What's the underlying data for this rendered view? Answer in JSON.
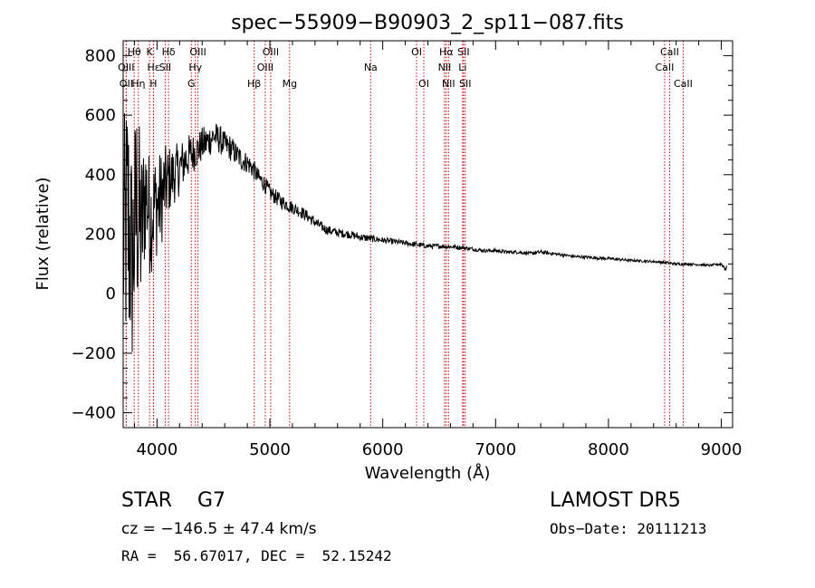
{
  "chart_data": {
    "type": "line",
    "title": "spec−55909−B90903_2_sp11−087.fits",
    "xlabel": "Wavelength (Å)",
    "ylabel": "Flux (relative)",
    "xlim": [
      3700,
      9100
    ],
    "ylim": [
      -450,
      850
    ],
    "xticks": [
      4000,
      5000,
      6000,
      7000,
      8000,
      9000
    ],
    "yticks": [
      -400,
      -200,
      0,
      200,
      400,
      600,
      800
    ],
    "ytick_labels": [
      "−400",
      "−200",
      "0",
      "200",
      "400",
      "600",
      "800"
    ],
    "line_color": "#000000",
    "marker_color": "#cc0000",
    "series": [
      {
        "x": [
          3700,
          3740,
          3780,
          3820,
          3860,
          3900,
          3940,
          3980,
          4020,
          4060,
          4100,
          4150,
          4200,
          4250,
          4300,
          4350,
          4400,
          4450,
          4500,
          4550,
          4600,
          4650,
          4700,
          4750,
          4800,
          4850,
          4900,
          4950,
          5000,
          5100,
          5200,
          5300,
          5400,
          5500,
          5600,
          5700,
          5800,
          5900,
          6000,
          6100,
          6200,
          6300,
          6400,
          6500,
          6600,
          6700,
          6800,
          6900,
          7000,
          7100,
          7200,
          7300,
          7400,
          7500,
          7600,
          7700,
          7800,
          7900,
          8000,
          8100,
          8200,
          8300,
          8400,
          8500,
          8600,
          8700,
          8800,
          8900,
          9000,
          9050
        ],
        "y": [
          150,
          250,
          100,
          300,
          200,
          350,
          250,
          300,
          300,
          350,
          380,
          400,
          420,
          450,
          470,
          480,
          500,
          510,
          530,
          520,
          500,
          490,
          470,
          450,
          440,
          420,
          390,
          370,
          340,
          310,
          290,
          270,
          240,
          215,
          205,
          200,
          190,
          185,
          180,
          175,
          170,
          165,
          160,
          160,
          158,
          155,
          150,
          145,
          145,
          140,
          140,
          135,
          140,
          135,
          130,
          125,
          123,
          120,
          118,
          115,
          112,
          110,
          108,
          105,
          100,
          100,
          98,
          95,
          100,
          80
        ],
        "noise": [
          400,
          500,
          380,
          400,
          300,
          220,
          200,
          180,
          180,
          150,
          120,
          100,
          90,
          80,
          70,
          60,
          60,
          60,
          50,
          50,
          45,
          45,
          40,
          40,
          35,
          35,
          30,
          30,
          28,
          25,
          22,
          20,
          18,
          16,
          15,
          14,
          13,
          12,
          10,
          10,
          9,
          9,
          8,
          8,
          8,
          7,
          7,
          6,
          6,
          6,
          6,
          6,
          7,
          6,
          5,
          5,
          5,
          5,
          5,
          5,
          4,
          4,
          4,
          5,
          5,
          4,
          4,
          4,
          5,
          15
        ]
      }
    ],
    "spectral_lines": [
      {
        "label": "Hθ",
        "wavelength": 3798,
        "row": 0
      },
      {
        "label": "K",
        "wavelength": 3934,
        "row": 0
      },
      {
        "label": "Hδ",
        "wavelength": 4102,
        "row": 0
      },
      {
        "label": "OIII",
        "wavelength": 4363,
        "row": 0
      },
      {
        "label": "OIII",
        "wavelength": 5007,
        "row": 0
      },
      {
        "label": "OI",
        "wavelength": 6300,
        "row": 0
      },
      {
        "label": "Hα",
        "wavelength": 6563,
        "row": 0
      },
      {
        "label": "SII",
        "wavelength": 6716,
        "row": 0
      },
      {
        "label": "CaII",
        "wavelength": 8542,
        "row": 0
      },
      {
        "label": "OIII",
        "wavelength": 3727,
        "row": 1
      },
      {
        "label": "Hε",
        "wavelength": 3970,
        "row": 1
      },
      {
        "label": "SII",
        "wavelength": 4072,
        "row": 1
      },
      {
        "label": "Hγ",
        "wavelength": 4340,
        "row": 1
      },
      {
        "label": "OIII",
        "wavelength": 4959,
        "row": 1
      },
      {
        "label": "Na",
        "wavelength": 5893,
        "row": 1
      },
      {
        "label": "NII",
        "wavelength": 6548,
        "row": 1
      },
      {
        "label": "Li",
        "wavelength": 6708,
        "row": 1
      },
      {
        "label": "CaII",
        "wavelength": 8498,
        "row": 1
      },
      {
        "label": "OII",
        "wavelength": 3727,
        "row": 2
      },
      {
        "label": "Hη",
        "wavelength": 3835,
        "row": 2
      },
      {
        "label": "H",
        "wavelength": 3968,
        "row": 2
      },
      {
        "label": "G",
        "wavelength": 4304,
        "row": 2
      },
      {
        "label": "Hβ",
        "wavelength": 4861,
        "row": 2
      },
      {
        "label": "Mg",
        "wavelength": 5175,
        "row": 2
      },
      {
        "label": "OI",
        "wavelength": 6364,
        "row": 2
      },
      {
        "label": "NII",
        "wavelength": 6583,
        "row": 2
      },
      {
        "label": "SII",
        "wavelength": 6731,
        "row": 2
      },
      {
        "label": "CaII",
        "wavelength": 8662,
        "row": 2
      }
    ]
  },
  "info": {
    "class_text": "STAR    G7",
    "survey": "LAMOST DR5",
    "cz": "cz = −146.5 ± 47.4 km/s",
    "obs_date": "Obs−Date: 20111213",
    "coords": "RA =  56.67017, DEC =  52.15242"
  }
}
